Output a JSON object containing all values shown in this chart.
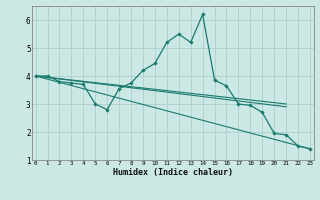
{
  "xlabel": "Humidex (Indice chaleur)",
  "x_values": [
    0,
    1,
    2,
    3,
    4,
    5,
    6,
    7,
    8,
    9,
    10,
    11,
    12,
    13,
    14,
    15,
    16,
    17,
    18,
    19,
    20,
    21,
    22,
    23
  ],
  "main_line": [
    4.0,
    4.0,
    3.8,
    3.75,
    3.7,
    3.0,
    2.8,
    3.55,
    3.75,
    4.2,
    4.45,
    5.2,
    5.5,
    5.2,
    6.2,
    3.85,
    3.65,
    3.0,
    2.95,
    2.7,
    1.95,
    1.9,
    1.5,
    1.4
  ],
  "trend1_x": [
    0,
    21
  ],
  "trend1_y": [
    4.0,
    3.0
  ],
  "trend2_x": [
    0,
    21
  ],
  "trend2_y": [
    4.0,
    2.9
  ],
  "trend3_x": [
    0,
    23
  ],
  "trend3_y": [
    4.0,
    1.4
  ],
  "ylim": [
    1,
    6.5
  ],
  "xlim": [
    -0.3,
    23.3
  ],
  "yticks": [
    1,
    2,
    3,
    4,
    5,
    6
  ],
  "xticks": [
    0,
    1,
    2,
    3,
    4,
    5,
    6,
    7,
    8,
    9,
    10,
    11,
    12,
    13,
    14,
    15,
    16,
    17,
    18,
    19,
    20,
    21,
    22,
    23
  ],
  "line_color": "#1a7a6e",
  "bg_color": "#cce8e5",
  "grid_color": "#aacfcc",
  "fig_bg": "#cce8e5"
}
